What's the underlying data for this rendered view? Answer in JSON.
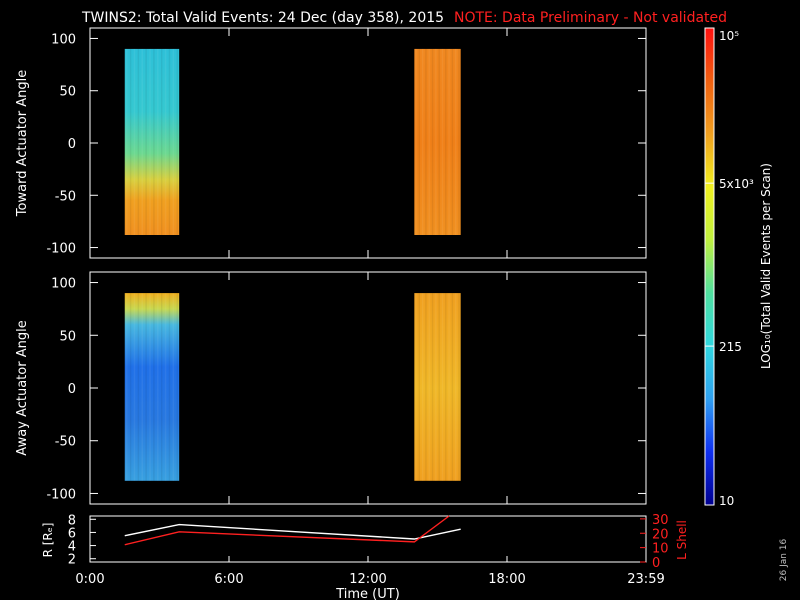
{
  "header": {
    "title": "TWINS2: Total Valid Events: 24 Dec (day 358), 2015",
    "note": "NOTE: Data Preliminary - Not validated"
  },
  "chart_data": [
    {
      "type": "heatmap",
      "panel": "top",
      "ylabel": "Toward Actuator Angle",
      "ylim": [
        -110,
        110
      ],
      "yticks": [
        "100",
        "50",
        "0",
        "-50",
        "-100"
      ],
      "xlim_hours": [
        0,
        24
      ],
      "blocks": [
        {
          "t_start": 1.5,
          "t_end": 3.85,
          "angle_min": -88,
          "angle_max": 90,
          "profile": [
            {
              "angle": 90,
              "color": "#2ec0d8"
            },
            {
              "angle": 30,
              "color": "#35c8d0"
            },
            {
              "angle": -10,
              "color": "#6cd890"
            },
            {
              "angle": -35,
              "color": "#d8d040"
            },
            {
              "angle": -55,
              "color": "#f0a020"
            },
            {
              "angle": -88,
              "color": "#f09020"
            }
          ]
        },
        {
          "t_start": 14.0,
          "t_end": 16.0,
          "angle_min": -88,
          "angle_max": 90,
          "profile": [
            {
              "angle": 90,
              "color": "#f08820"
            },
            {
              "angle": 0,
              "color": "#f08018"
            },
            {
              "angle": -88,
              "color": "#f09020"
            }
          ]
        }
      ]
    },
    {
      "type": "heatmap",
      "panel": "middle",
      "ylabel": "Away Actuator Angle",
      "ylim": [
        -110,
        110
      ],
      "yticks": [
        "100",
        "50",
        "0",
        "-50",
        "-100"
      ],
      "xlim_hours": [
        0,
        24
      ],
      "blocks": [
        {
          "t_start": 1.5,
          "t_end": 3.85,
          "angle_min": -88,
          "angle_max": 90,
          "profile": [
            {
              "angle": 90,
              "color": "#f0b020"
            },
            {
              "angle": 75,
              "color": "#c8d850"
            },
            {
              "angle": 60,
              "color": "#48b8e0"
            },
            {
              "angle": 20,
              "color": "#2070e8"
            },
            {
              "angle": -30,
              "color": "#2878e0"
            },
            {
              "angle": -88,
              "color": "#38a0e0"
            }
          ]
        },
        {
          "t_start": 14.0,
          "t_end": 16.0,
          "angle_min": -88,
          "angle_max": 90,
          "profile": [
            {
              "angle": 90,
              "color": "#f0a020"
            },
            {
              "angle": 0,
              "color": "#f0b828"
            },
            {
              "angle": -88,
              "color": "#f0a020"
            }
          ]
        }
      ]
    },
    {
      "type": "line",
      "panel": "bottom",
      "ylabel_left": "R [Rₑ]",
      "ylabel_right": "L Shell",
      "ylim_left": [
        1.5,
        8.5
      ],
      "ylim_right": [
        0,
        32
      ],
      "yticks_left": [
        "8",
        "6",
        "4",
        "2"
      ],
      "yticks_right": [
        "30",
        "20",
        "10",
        "0"
      ],
      "xlabel": "Time (UT)",
      "xticks": [
        "0:00",
        "6:00",
        "12:00",
        "18:00",
        "23:59"
      ],
      "series": [
        {
          "axis": "left",
          "color": "#ffffff",
          "x": [
            1.5,
            3.85,
            14.0,
            16.0
          ],
          "y": [
            5.5,
            7.2,
            5.0,
            6.5
          ]
        },
        {
          "axis": "right",
          "color": "#ff2020",
          "x": [
            1.5,
            3.85,
            14.0,
            15.5
          ],
          "y": [
            12,
            21,
            14,
            32
          ]
        }
      ]
    }
  ],
  "colorbar": {
    "label": "LOG₁₀(Total Valid Events per Scan)",
    "ticks": [
      {
        "label": "10",
        "value": 10
      },
      {
        "label": "215",
        "value": 215
      },
      {
        "label": "5x10³",
        "value": 5000
      },
      {
        "label": "10⁵",
        "value": 100000
      }
    ],
    "min": 10,
    "max": 100000,
    "stops": [
      "#000090",
      "#1030f0",
      "#30a0f0",
      "#30d8e0",
      "#50e0a0",
      "#c0f040",
      "#f0f020",
      "#f0a020",
      "#f06010",
      "#ff1010"
    ]
  },
  "footer": {
    "date_stamp": "26 Jan 16"
  }
}
